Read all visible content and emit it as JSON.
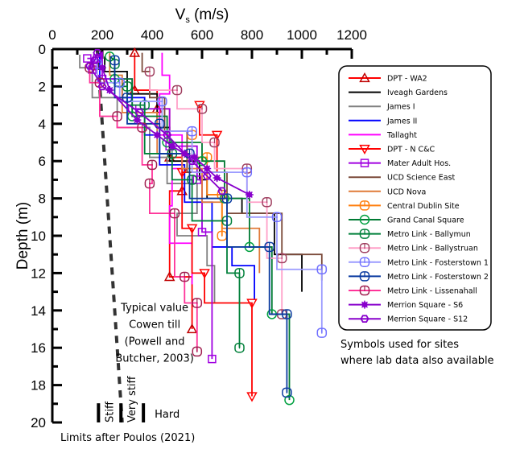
{
  "chart_data": {
    "type": "line",
    "title": "",
    "xlabel": "V",
    "xlabel_sub": "s",
    "xlabel_unit": " (m/s)",
    "ylabel": "Depth (m)",
    "xlim": [
      0,
      1200
    ],
    "ylim": [
      0,
      20
    ],
    "y_inverted": true,
    "x_axis_position": "top",
    "xticks": [
      0,
      200,
      400,
      600,
      800,
      1000,
      1200
    ],
    "xticks_minor_step": 100,
    "yticks": [
      0,
      2,
      4,
      6,
      8,
      10,
      12,
      14,
      16,
      18,
      20
    ],
    "yticks_minor_step": 1,
    "grid": false,
    "legend_position": "right",
    "series": [
      {
        "name": "DPT - WA2",
        "color": "#ff0000",
        "marker": "triangle-up",
        "marker_color": "#c00000",
        "points": [
          [
            330,
            0.2
          ],
          [
            330,
            0.9
          ],
          [
            330,
            2.2
          ],
          [
            420,
            2.2
          ],
          [
            420,
            3.2
          ],
          [
            470,
            3.2
          ],
          [
            470,
            5.8
          ],
          [
            520,
            5.8
          ],
          [
            520,
            7.6
          ],
          [
            470,
            7.6
          ],
          [
            470,
            12.2
          ],
          [
            560,
            12.2
          ],
          [
            560,
            15.0
          ]
        ]
      },
      {
        "name": "Iveagh Gardens",
        "color": "#000000",
        "marker": "none",
        "points": [
          [
            210,
            0.4
          ],
          [
            210,
            1.2
          ],
          [
            300,
            1.2
          ],
          [
            300,
            2.4
          ],
          [
            420,
            2.4
          ],
          [
            420,
            4.2
          ],
          [
            470,
            4.2
          ],
          [
            470,
            6.0
          ],
          [
            590,
            6.0
          ],
          [
            590,
            7.0
          ],
          [
            620,
            7.0
          ],
          [
            620,
            8.0
          ],
          [
            760,
            8.0
          ],
          [
            760,
            8.8
          ],
          [
            890,
            8.8
          ],
          [
            890,
            11.0
          ],
          [
            1000,
            11.0
          ],
          [
            1000,
            13.0
          ]
        ]
      },
      {
        "name": "James I",
        "color": "#808080",
        "marker": "none",
        "points": [
          [
            110,
            0.3
          ],
          [
            110,
            1.0
          ],
          [
            160,
            1.0
          ],
          [
            160,
            2.6
          ],
          [
            260,
            2.6
          ],
          [
            260,
            4.2
          ],
          [
            390,
            4.2
          ],
          [
            390,
            5.8
          ],
          [
            460,
            5.8
          ],
          [
            460,
            7.2
          ],
          [
            580,
            7.2
          ],
          [
            580,
            8.8
          ],
          [
            500,
            8.8
          ],
          [
            500,
            10.0
          ],
          [
            620,
            10.0
          ],
          [
            620,
            11.6
          ],
          [
            650,
            11.6
          ],
          [
            650,
            13.6
          ]
        ]
      },
      {
        "name": "James II",
        "color": "#0000ff",
        "marker": "none",
        "points": [
          [
            190,
            0.2
          ],
          [
            190,
            1.6
          ],
          [
            280,
            1.6
          ],
          [
            280,
            2.6
          ],
          [
            370,
            2.6
          ],
          [
            370,
            4.6
          ],
          [
            430,
            4.6
          ],
          [
            430,
            6.2
          ],
          [
            530,
            6.2
          ],
          [
            530,
            8.2
          ],
          [
            640,
            8.2
          ],
          [
            640,
            10.6
          ],
          [
            720,
            10.6
          ],
          [
            720,
            11.6
          ],
          [
            810,
            11.6
          ],
          [
            810,
            13.4
          ]
        ]
      },
      {
        "name": "Tallaght",
        "color": "#ff00ff",
        "marker": "none",
        "points": [
          [
            440,
            0.2
          ],
          [
            440,
            1.4
          ],
          [
            470,
            1.4
          ],
          [
            470,
            2.4
          ],
          [
            430,
            2.4
          ],
          [
            430,
            4.6
          ],
          [
            520,
            4.6
          ],
          [
            520,
            6.4
          ],
          [
            480,
            6.4
          ],
          [
            480,
            8.4
          ],
          [
            470,
            8.4
          ],
          [
            470,
            10.4
          ],
          [
            560,
            10.4
          ],
          [
            560,
            12.6
          ]
        ]
      },
      {
        "name": "DPT - N C&C",
        "color": "#ff0000",
        "marker": "triangle-down",
        "marker_color": "#ff0000",
        "points": [
          [
            590,
            3.0
          ],
          [
            590,
            4.6
          ],
          [
            660,
            4.6
          ],
          [
            660,
            6.6
          ],
          [
            520,
            6.6
          ],
          [
            520,
            9.6
          ],
          [
            560,
            9.6
          ],
          [
            560,
            12.0
          ],
          [
            610,
            12.0
          ],
          [
            610,
            13.6
          ],
          [
            800,
            13.6
          ],
          [
            800,
            18.6
          ]
        ]
      },
      {
        "name": "Mater Adult Hos.",
        "color": "#a000e0",
        "marker": "square",
        "marker_color": "#a000e0",
        "points": [
          [
            140,
            0.5
          ],
          [
            160,
            0.5
          ],
          [
            160,
            1.1
          ],
          [
            180,
            1.1
          ],
          [
            180,
            0.5
          ],
          [
            200,
            0.2
          ],
          [
            200,
            1.6
          ],
          [
            320,
            1.6
          ],
          [
            320,
            3.2
          ],
          [
            470,
            3.2
          ],
          [
            470,
            5.2
          ],
          [
            580,
            5.2
          ],
          [
            580,
            7.0
          ],
          [
            600,
            7.0
          ],
          [
            600,
            9.8
          ],
          [
            640,
            9.8
          ],
          [
            640,
            16.6
          ]
        ]
      },
      {
        "name": "UCD Science East",
        "color": "#7b4a3a",
        "marker": "none",
        "points": [
          [
            360,
            0.2
          ],
          [
            360,
            1.2
          ],
          [
            390,
            1.2
          ],
          [
            390,
            2.6
          ],
          [
            450,
            2.6
          ],
          [
            450,
            4.4
          ],
          [
            540,
            4.4
          ],
          [
            540,
            6.6
          ],
          [
            700,
            6.6
          ],
          [
            700,
            8.8
          ],
          [
            920,
            8.8
          ],
          [
            920,
            11.0
          ],
          [
            1080,
            11.0
          ],
          [
            1080,
            12.4
          ]
        ]
      },
      {
        "name": "UCD Nova",
        "color": "#e07b39",
        "marker": "none",
        "points": [
          [
            230,
            0.2
          ],
          [
            230,
            1.4
          ],
          [
            280,
            1.4
          ],
          [
            280,
            3.4
          ],
          [
            420,
            3.4
          ],
          [
            420,
            5.6
          ],
          [
            520,
            5.6
          ],
          [
            520,
            6.4
          ],
          [
            600,
            6.4
          ],
          [
            600,
            8.2
          ],
          [
            680,
            8.2
          ],
          [
            680,
            9.6
          ],
          [
            830,
            9.6
          ],
          [
            830,
            12.0
          ]
        ]
      },
      {
        "name": "Central Dublin Site",
        "color": "#ff7f0e",
        "marker": "circle-cross",
        "marker_color": "#ff7f0e",
        "points": [
          [
            560,
            4.6
          ],
          [
            560,
            5.8
          ],
          [
            620,
            5.8
          ],
          [
            620,
            7.8
          ],
          [
            680,
            7.8
          ],
          [
            680,
            9.0
          ],
          [
            680,
            10.0
          ]
        ]
      },
      {
        "name": "Grand Canal Square",
        "color": "#007a33",
        "marker": "circle",
        "marker_color": "#00a040",
        "points": [
          [
            230,
            0.4
          ],
          [
            250,
            0.6
          ],
          [
            250,
            1.6
          ],
          [
            320,
            1.6
          ],
          [
            320,
            3.6
          ],
          [
            460,
            3.6
          ],
          [
            460,
            5.0
          ],
          [
            600,
            5.0
          ],
          [
            600,
            6.0
          ],
          [
            690,
            6.0
          ],
          [
            690,
            8.0
          ],
          [
            790,
            8.0
          ],
          [
            790,
            10.6
          ],
          [
            880,
            10.6
          ],
          [
            880,
            14.2
          ],
          [
            950,
            14.2
          ],
          [
            950,
            18.8
          ]
        ]
      },
      {
        "name": "Metro Link - Ballymun",
        "color": "#00803a",
        "marker": "circle-cross",
        "marker_color": "#00803a",
        "points": [
          [
            250,
            0.8
          ],
          [
            250,
            2.0
          ],
          [
            300,
            2.0
          ],
          [
            300,
            3.0
          ],
          [
            370,
            3.0
          ],
          [
            370,
            5.6
          ],
          [
            480,
            5.6
          ],
          [
            480,
            7.0
          ],
          [
            560,
            7.0
          ],
          [
            560,
            9.2
          ],
          [
            700,
            9.2
          ],
          [
            700,
            12.0
          ],
          [
            750,
            12.0
          ],
          [
            750,
            16.0
          ]
        ]
      },
      {
        "name": "Metro Link - Ballystruan",
        "color": "#ffa0c8",
        "marker": "circle-cross",
        "marker_color": "#a04060",
        "points": [
          [
            390,
            1.2
          ],
          [
            390,
            2.2
          ],
          [
            500,
            2.2
          ],
          [
            500,
            3.2
          ],
          [
            600,
            3.2
          ],
          [
            600,
            5.0
          ],
          [
            650,
            5.0
          ],
          [
            650,
            6.4
          ],
          [
            780,
            6.4
          ],
          [
            780,
            8.2
          ],
          [
            860,
            8.2
          ],
          [
            860,
            11.2
          ],
          [
            920,
            11.2
          ],
          [
            920,
            14.2
          ]
        ]
      },
      {
        "name": "Metro Link - Fosterstown 1",
        "color": "#9b9bff",
        "marker": "circle-cross",
        "marker_color": "#7070ff",
        "points": [
          [
            180,
            0.8
          ],
          [
            180,
            1.8
          ],
          [
            270,
            1.8
          ],
          [
            270,
            2.8
          ],
          [
            440,
            2.8
          ],
          [
            440,
            4.4
          ],
          [
            560,
            4.4
          ],
          [
            560,
            6.6
          ],
          [
            780,
            6.6
          ],
          [
            780,
            9.0
          ],
          [
            900,
            9.0
          ],
          [
            900,
            11.8
          ],
          [
            1080,
            11.8
          ],
          [
            1080,
            15.2
          ]
        ]
      },
      {
        "name": "Metro Link - Fosterstown 2",
        "color": "#0a3aa0",
        "marker": "circle-cross",
        "marker_color": "#0a3aa0",
        "points": [
          [
            250,
            0.6
          ],
          [
            250,
            2.6
          ],
          [
            300,
            2.6
          ],
          [
            300,
            4.0
          ],
          [
            430,
            4.0
          ],
          [
            430,
            5.6
          ],
          [
            550,
            5.6
          ],
          [
            550,
            8.0
          ],
          [
            700,
            8.0
          ],
          [
            700,
            10.6
          ],
          [
            870,
            10.6
          ],
          [
            870,
            14.2
          ],
          [
            940,
            14.2
          ],
          [
            940,
            18.4
          ]
        ]
      },
      {
        "name": "Metro Link - Lissenahall",
        "color": "#ff3399",
        "marker": "circle-cross",
        "marker_color": "#a02050",
        "points": [
          [
            150,
            1.0
          ],
          [
            150,
            1.8
          ],
          [
            190,
            1.8
          ],
          [
            190,
            3.6
          ],
          [
            260,
            3.6
          ],
          [
            260,
            4.2
          ],
          [
            360,
            4.2
          ],
          [
            360,
            6.2
          ],
          [
            400,
            6.2
          ],
          [
            400,
            7.2
          ],
          [
            390,
            7.2
          ],
          [
            390,
            8.8
          ],
          [
            490,
            8.8
          ],
          [
            490,
            12.2
          ],
          [
            530,
            12.2
          ],
          [
            530,
            13.6
          ],
          [
            580,
            13.6
          ],
          [
            580,
            16.2
          ]
        ]
      },
      {
        "name": "Merrion Square - S6",
        "color": "#8800cc",
        "marker": "star",
        "marker_color": "#8800cc",
        "points": [
          [
            200,
            1.0
          ],
          [
            230,
            2.2
          ],
          [
            340,
            3.8
          ],
          [
            420,
            4.6
          ],
          [
            480,
            5.2
          ],
          [
            530,
            5.6
          ],
          [
            570,
            5.8
          ],
          [
            620,
            6.4
          ],
          [
            660,
            6.9
          ],
          [
            790,
            7.8
          ]
        ]
      },
      {
        "name": "Merrion Square - S12",
        "color": "#8800cc",
        "marker": "hexagon",
        "marker_color": "#8800cc",
        "points": [
          [
            180,
            0.2
          ],
          [
            170,
            0.6
          ],
          [
            150,
            0.9
          ],
          [
            200,
            2.0
          ],
          [
            350,
            3.4
          ],
          [
            460,
            4.6
          ],
          [
            560,
            6.0
          ],
          [
            620,
            6.8
          ],
          [
            680,
            7.6
          ]
        ]
      }
    ],
    "reference_lines": [
      {
        "name": "Typical value Cowen till",
        "style": "dashed",
        "color": "#333333",
        "points": [
          [
            180,
            0
          ],
          [
            280,
            20
          ]
        ]
      }
    ],
    "annotations": [
      {
        "text": [
          "Typical value",
          "Cowen till",
          "(Powell and",
          "Butcher, 2003)"
        ],
        "at_vs": 410,
        "at_depth": 14.6
      },
      {
        "text": [
          "Symbols used for sites",
          "where lab data also available"
        ],
        "position": "right-below-legend"
      }
    ],
    "poulos_limits": {
      "caption": "Limits after Poulos (2021)",
      "boundaries_vs": [
        185,
        275,
        365
      ],
      "labels": [
        {
          "text": "Stiff",
          "between": [
            185,
            275
          ],
          "rotated": true
        },
        {
          "text": "Very stiff",
          "between": [
            275,
            365
          ],
          "rotated": true
        },
        {
          "text": "Hard",
          "above": 365,
          "rotated": false
        }
      ],
      "depth_range": [
        18.8,
        20
      ]
    }
  }
}
